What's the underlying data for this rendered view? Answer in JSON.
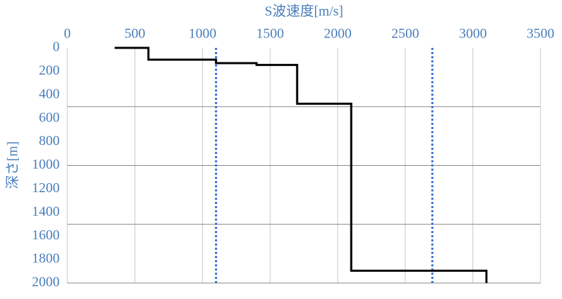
{
  "chart_data": {
    "type": "step",
    "x_label": "S波速度[m/s]",
    "y_label": "深さ[m]",
    "xlim": [
      0,
      3500
    ],
    "xticks": [
      0,
      500,
      1000,
      1500,
      2000,
      2500,
      3000,
      3500
    ],
    "ylim": [
      0,
      2000
    ],
    "yticks": [
      0,
      200,
      400,
      600,
      800,
      1000,
      1200,
      1400,
      1600,
      1800,
      2000
    ],
    "y_inverted": true,
    "x_axis_position": "top",
    "xgrid": true,
    "ygrid_lines": [
      500,
      1000,
      1500
    ],
    "series": [
      {
        "color": "#000000",
        "x": [
          350,
          600,
          600,
          1100,
          1100,
          1400,
          1400,
          1700,
          1700,
          2100,
          2100,
          3100,
          3100
        ],
        "values": [
          0,
          0,
          100,
          100,
          130,
          130,
          145,
          145,
          475,
          475,
          1895,
          1895,
          2000
        ]
      }
    ],
    "reference_lines": {
      "color": "#3a6fd8",
      "x": [
        1100,
        2700
      ]
    }
  }
}
